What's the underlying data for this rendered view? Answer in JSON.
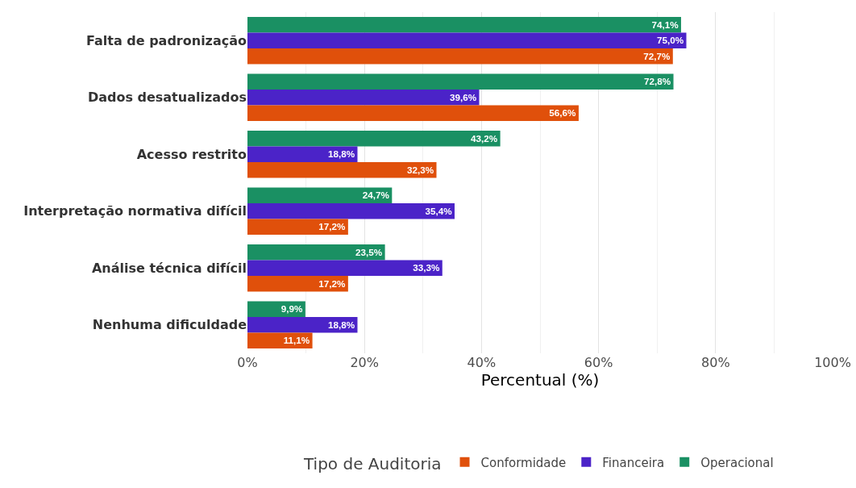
{
  "chart_data": {
    "type": "bar",
    "orientation": "horizontal",
    "categories": [
      "Falta de padronização",
      "Dados desatualizados",
      "Acesso restrito",
      "Interpretação normativa difícil",
      "Análise técnica difícil",
      "Nenhuma dificuldade"
    ],
    "series": [
      {
        "name": "Conformidade",
        "color": "#e0500b",
        "values": [
          72.7,
          56.6,
          32.3,
          17.2,
          17.2,
          11.1
        ],
        "value_labels": [
          "72,7%",
          "56,6%",
          "32,3%",
          "17,2%",
          "17,2%",
          "11,1%"
        ]
      },
      {
        "name": "Financeira",
        "color": "#4b23c8",
        "values": [
          75.0,
          39.6,
          18.8,
          35.4,
          33.3,
          18.8
        ],
        "value_labels": [
          "75,0%",
          "39,6%",
          "18,8%",
          "35,4%",
          "33,3%",
          "18,8%"
        ]
      },
      {
        "name": "Operacional",
        "color": "#1a9063",
        "values": [
          74.1,
          72.8,
          43.2,
          24.7,
          23.5,
          9.9
        ],
        "value_labels": [
          "74,1%",
          "72,8%",
          "43,2%",
          "24,7%",
          "23,5%",
          "9,9%"
        ]
      }
    ],
    "xlim": [
      0,
      100
    ],
    "xticks": [
      {
        "value": 0,
        "label": "0%"
      },
      {
        "value": 20,
        "label": "20%"
      },
      {
        "value": 40,
        "label": "40%"
      },
      {
        "value": 60,
        "label": "60%"
      },
      {
        "value": 80,
        "label": "80%"
      },
      {
        "value": 100,
        "label": "100%"
      }
    ],
    "xlabel": "Percentual (%)",
    "legend_title": "Tipo de Auditoria",
    "legend": "bottom",
    "grid": "x"
  }
}
